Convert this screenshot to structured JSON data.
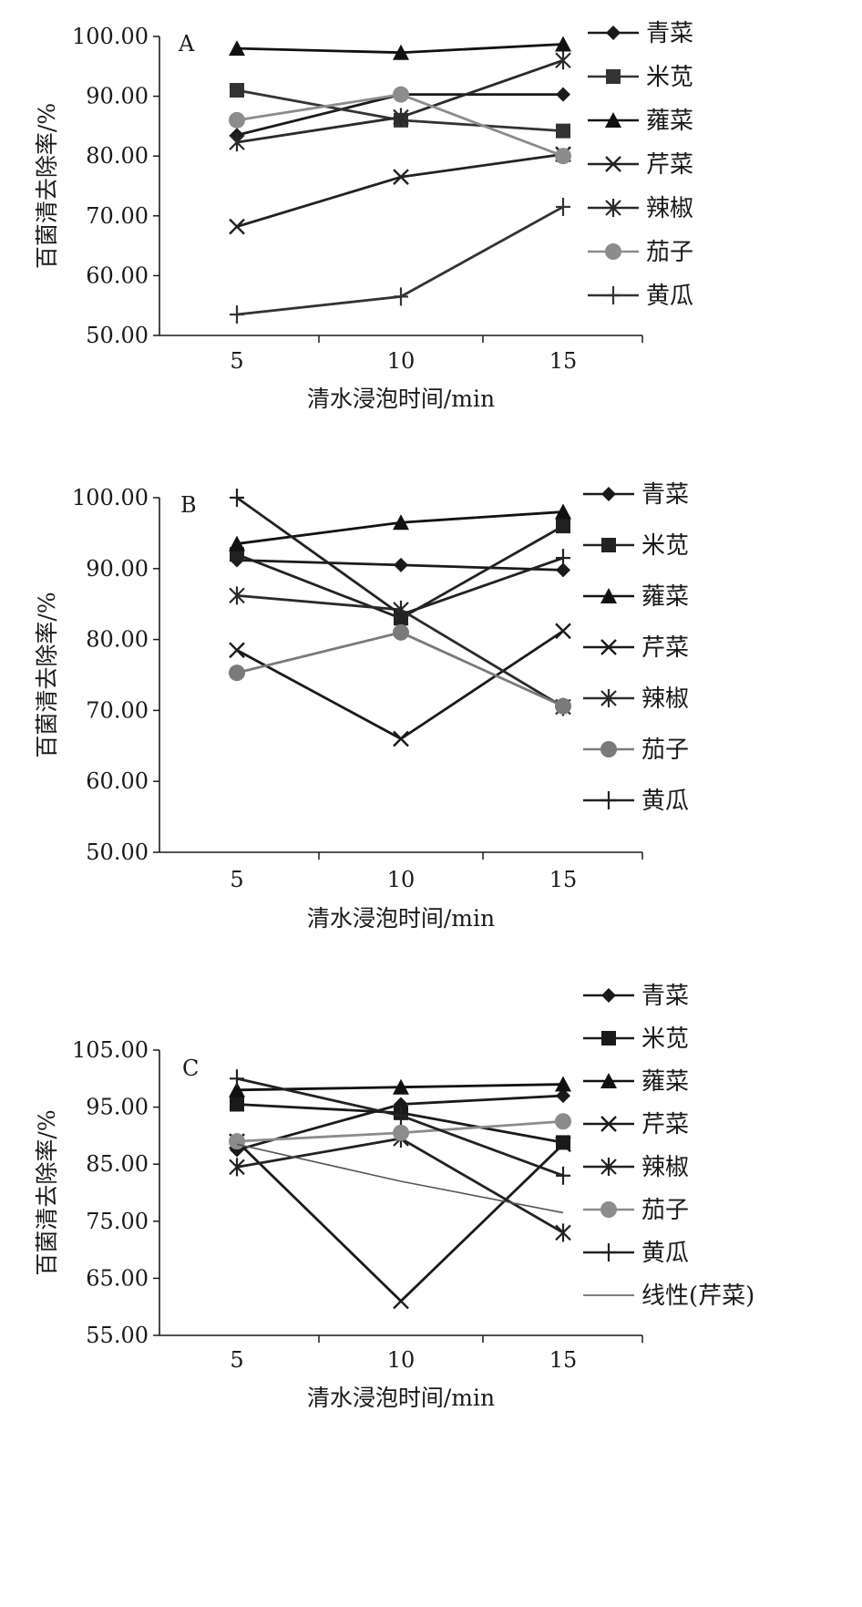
{
  "chart_data": [
    {
      "type": "line",
      "panel_label": "A",
      "x": [
        5,
        10,
        15
      ],
      "xlabel": "清水浸泡时间/min",
      "ylabel": "百菌清去除率/%",
      "ylim": [
        50,
        100
      ],
      "yticks": [
        "50.00",
        "60.00",
        "70.00",
        "80.00",
        "90.00",
        "100.00"
      ],
      "xticks": [
        "5",
        "10",
        "15"
      ],
      "legend_position": "right",
      "series": [
        {
          "name": "青菜",
          "marker": "diamond",
          "color": "#1a1a1a",
          "values": [
            83.5,
            90.3,
            90.3
          ]
        },
        {
          "name": "米苋",
          "marker": "square",
          "color": "#333333",
          "values": [
            91.0,
            86.0,
            84.2
          ]
        },
        {
          "name": "蕹菜",
          "marker": "triangle",
          "color": "#111111",
          "values": [
            98.0,
            97.3,
            98.7
          ]
        },
        {
          "name": "芹菜",
          "marker": "x",
          "color": "#222222",
          "values": [
            68.2,
            76.5,
            80.3
          ]
        },
        {
          "name": "辣椒",
          "marker": "star",
          "color": "#2a2a2a",
          "values": [
            82.3,
            86.5,
            96.0
          ]
        },
        {
          "name": "茄子",
          "marker": "circle",
          "color": "#8c8c8c",
          "values": [
            86.0,
            90.3,
            80.0
          ]
        },
        {
          "name": "黄瓜",
          "marker": "plus",
          "color": "#333333",
          "values": [
            53.5,
            56.5,
            71.5
          ]
        }
      ]
    },
    {
      "type": "line",
      "panel_label": "B",
      "x": [
        5,
        10,
        15
      ],
      "xlabel": "清水浸泡时间/min",
      "ylabel": "百菌清去除率/%",
      "ylim": [
        50,
        100
      ],
      "yticks": [
        "50.00",
        "60.00",
        "70.00",
        "80.00",
        "90.00",
        "100.00"
      ],
      "xticks": [
        "5",
        "10",
        "15"
      ],
      "legend_position": "right",
      "series": [
        {
          "name": "青菜",
          "marker": "diamond",
          "color": "#1a1a1a",
          "values": [
            91.2,
            90.5,
            89.8
          ]
        },
        {
          "name": "米苋",
          "marker": "square",
          "color": "#222222",
          "values": [
            92.0,
            83.0,
            96.0
          ]
        },
        {
          "name": "蕹菜",
          "marker": "triangle",
          "color": "#111111",
          "values": [
            93.5,
            96.5,
            98.0
          ]
        },
        {
          "name": "芹菜",
          "marker": "x",
          "color": "#1a1a1a",
          "values": [
            78.5,
            66.0,
            81.2
          ]
        },
        {
          "name": "辣椒",
          "marker": "star",
          "color": "#2a2a2a",
          "values": [
            86.2,
            84.2,
            70.5
          ]
        },
        {
          "name": "茄子",
          "marker": "circle",
          "color": "#7a7a7a",
          "values": [
            75.3,
            81.0,
            70.6
          ]
        },
        {
          "name": "黄瓜",
          "marker": "plus",
          "color": "#222222",
          "values": [
            100.0,
            83.5,
            91.5
          ]
        }
      ]
    },
    {
      "type": "line",
      "panel_label": "C",
      "x": [
        5,
        10,
        15
      ],
      "xlabel": "清水浸泡时间/min",
      "ylabel": "百菌清去除率/%",
      "ylim": [
        55,
        105
      ],
      "yticks": [
        "55.00",
        "65.00",
        "75.00",
        "85.00",
        "95.00",
        "105.00"
      ],
      "xticks": [
        "5",
        "10",
        "15"
      ],
      "legend_position": "right",
      "series": [
        {
          "name": "青菜",
          "marker": "diamond",
          "color": "#1a1a1a",
          "values": [
            87.5,
            95.5,
            97.0
          ]
        },
        {
          "name": "米苋",
          "marker": "square",
          "color": "#1a1a1a",
          "values": [
            95.5,
            94.0,
            88.8
          ]
        },
        {
          "name": "蕹菜",
          "marker": "triangle",
          "color": "#111111",
          "values": [
            98.0,
            98.5,
            99.0
          ]
        },
        {
          "name": "芹菜",
          "marker": "x",
          "color": "#1a1a1a",
          "values": [
            89.0,
            61.0,
            88.5
          ]
        },
        {
          "name": "辣椒",
          "marker": "star",
          "color": "#222222",
          "values": [
            84.5,
            89.5,
            73.0
          ]
        },
        {
          "name": "茄子",
          "marker": "circle",
          "color": "#8c8c8c",
          "values": [
            89.0,
            90.5,
            92.5
          ]
        },
        {
          "name": "黄瓜",
          "marker": "plus",
          "color": "#222222",
          "values": [
            100.0,
            93.5,
            83.0
          ]
        },
        {
          "name": "线性(芹菜)",
          "marker": "none",
          "color": "#555555",
          "style": "trend",
          "values": [
            88.5,
            82.0,
            76.5
          ]
        }
      ]
    }
  ]
}
